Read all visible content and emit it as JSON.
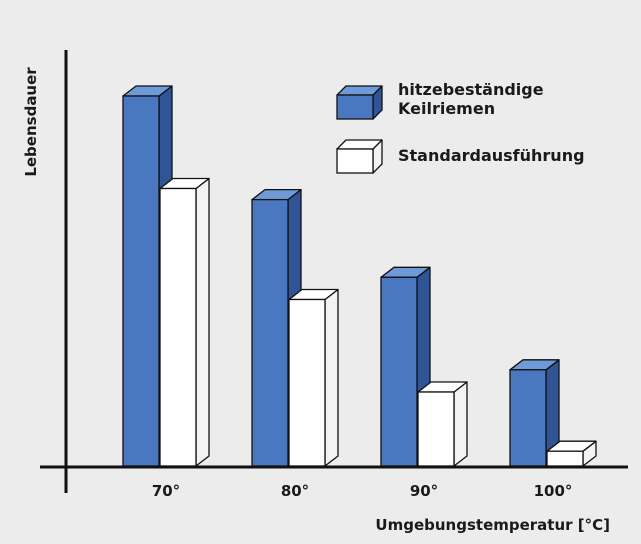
{
  "chart_data": {
    "type": "bar",
    "style": "3d-bar",
    "title": "",
    "xlabel": "Umgebungstemperatur [°C]",
    "ylabel": "Lebensdauer",
    "categories": [
      "70°",
      "80°",
      "90°",
      "100°"
    ],
    "series": [
      {
        "name": "hitzebeständige Keilriemen",
        "name_lines": [
          "hitzebeständige",
          "Keilriemen"
        ],
        "color": "#4a78c0",
        "values": [
          100,
          72,
          51,
          26
        ]
      },
      {
        "name": "Standardausführung",
        "name_lines": [
          "Standardausführung"
        ],
        "color": "#ffffff",
        "values": [
          75,
          45,
          20,
          4
        ]
      }
    ],
    "ylim": [
      0,
      100
    ],
    "y_ticks_shown": false,
    "grid": false,
    "legend_position": "top-right"
  }
}
